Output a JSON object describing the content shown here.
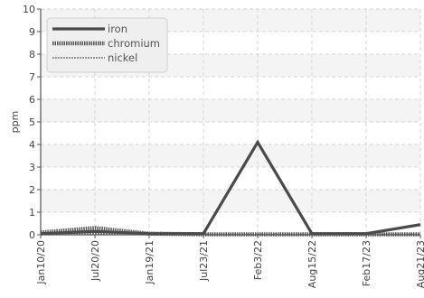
{
  "chart_data": {
    "type": "line",
    "title": "",
    "xlabel": "",
    "ylabel": "ppm",
    "ylim": [
      0,
      10
    ],
    "yticks": [
      0,
      1,
      2,
      3,
      4,
      5,
      6,
      7,
      8,
      9,
      10
    ],
    "grid": true,
    "legend_position": "top-left",
    "categories": [
      "Jan10/20",
      "Jul20/20",
      "Jan19/21",
      "Jul23/21",
      "Feb3/22",
      "Aug15/22",
      "Feb17/23",
      "Aug21/23"
    ],
    "series": [
      {
        "name": "iron",
        "style": "solid",
        "color": "#4a4a4a",
        "points": [
          {
            "x": "Jan10/20",
            "y": 0.05
          },
          {
            "x": "Jul20/20",
            "y": 0.15
          },
          {
            "x": "Jan19/21",
            "y": 0.05
          },
          {
            "x": "Jul23/21",
            "y": 0.05
          },
          {
            "x": "Feb3/22",
            "y": 4.1
          },
          {
            "x": "Aug15/22",
            "y": 0.05
          },
          {
            "x": "Feb17/23",
            "y": 0.05
          },
          {
            "x": "Aug21/23",
            "y": 0.45
          }
        ]
      },
      {
        "name": "chromium",
        "style": "dotted",
        "color": "#555555",
        "points": [
          {
            "x": "Jan10/20",
            "y": 0.1
          },
          {
            "x": "Jul20/20",
            "y": 0.3
          },
          {
            "x": "Jan19/21",
            "y": 0.05
          },
          {
            "x": "Jul23/21",
            "y": 0.02
          },
          {
            "x": "Feb3/22",
            "y": 0.02
          },
          {
            "x": "Aug15/22",
            "y": 0.02
          },
          {
            "x": "Feb17/23",
            "y": 0.02
          },
          {
            "x": "Aug21/23",
            "y": 0.02
          }
        ]
      },
      {
        "name": "nickel",
        "style": "dashed",
        "color": "#777777",
        "points": [
          {
            "x": "Jan10/20",
            "y": 0.02
          },
          {
            "x": "Jul20/20",
            "y": 0.05
          },
          {
            "x": "Jan19/21",
            "y": 0.02
          },
          {
            "x": "Jul23/21",
            "y": 0.02
          },
          {
            "x": "Feb3/22",
            "y": 0.02
          },
          {
            "x": "Aug15/22",
            "y": 0.02
          },
          {
            "x": "Feb17/23",
            "y": 0.02
          },
          {
            "x": "Aug21/23",
            "y": 0.02
          }
        ]
      }
    ]
  }
}
